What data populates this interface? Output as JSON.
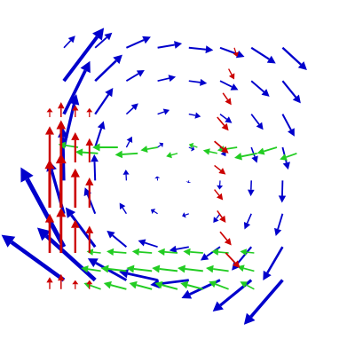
{
  "chart_data": {
    "type": "quiver",
    "xlim": [
      0,
      10
    ],
    "ylim": [
      0,
      10
    ],
    "series": [
      {
        "color": "#0000cc",
        "x": [
          1.0,
          2.1,
          3.2,
          4.3,
          5.4,
          6.5,
          7.6,
          8.7,
          1.0,
          2.1,
          3.2,
          4.3,
          5.4,
          6.5,
          7.6,
          8.7,
          1.0,
          2.1,
          3.2,
          4.3,
          5.4,
          6.5,
          7.6,
          8.7,
          1.0,
          2.1,
          3.2,
          4.3,
          5.4,
          6.5,
          7.6,
          8.7,
          1.0,
          2.1,
          3.2,
          4.3,
          5.4,
          6.5,
          7.6,
          8.7,
          1.0,
          2.1,
          3.2,
          4.3,
          5.4,
          6.5,
          7.6,
          8.7,
          1.0,
          2.1,
          3.2,
          4.3,
          5.4,
          6.5,
          7.6,
          8.7,
          1.0,
          2.1,
          3.2,
          4.3,
          5.4,
          6.5,
          7.6,
          8.7
        ],
        "y": [
          9.3,
          9.3,
          9.3,
          9.3,
          9.3,
          9.3,
          9.3,
          9.3,
          8.2,
          8.2,
          8.2,
          8.2,
          8.2,
          8.2,
          8.2,
          8.2,
          7.1,
          7.1,
          7.1,
          7.1,
          7.1,
          7.1,
          7.1,
          7.1,
          6.0,
          6.0,
          6.0,
          6.0,
          6.0,
          6.0,
          6.0,
          6.0,
          4.9,
          4.9,
          4.9,
          4.9,
          4.9,
          4.9,
          4.9,
          4.9,
          3.8,
          3.8,
          3.8,
          3.8,
          3.8,
          3.8,
          3.8,
          3.8,
          2.7,
          2.7,
          2.7,
          2.7,
          2.7,
          2.7,
          2.7,
          2.7,
          1.6,
          1.6,
          1.6,
          1.6,
          1.6,
          1.6,
          1.6,
          1.6
        ],
        "u": [
          0.4,
          0.6,
          0.86,
          0.86,
          0.86,
          0.86,
          0.86,
          0.86,
          1.41,
          0.96,
          0.64,
          0.64,
          0.64,
          0.64,
          0.64,
          0.64,
          0.92,
          0.63,
          0.42,
          0.42,
          0.42,
          0.42,
          0.42,
          0.42,
          0.44,
          0.3,
          0.2,
          0.2,
          0.2,
          0.2,
          0.2,
          0.2,
          -0.04,
          -0.03,
          -0.02,
          -0.02,
          -0.02,
          -0.02,
          -0.02,
          -0.02,
          -0.53,
          -0.36,
          -0.24,
          -0.24,
          -0.24,
          -0.24,
          -0.24,
          -0.24,
          -1.52,
          -1.04,
          -0.69,
          -0.69,
          -0.69,
          -0.69,
          -0.69,
          -0.69,
          -2.2,
          -2.04,
          -1.36,
          -1.36,
          -1.36,
          -1.36,
          -1.36,
          -1.36
        ],
        "v": [
          0.4,
          0.5,
          0.36,
          0.14,
          -0.08,
          -0.3,
          -0.52,
          -0.74,
          1.76,
          0.87,
          0.36,
          0.14,
          -0.08,
          -0.3,
          -0.52,
          -0.74,
          1.76,
          0.87,
          0.36,
          0.14,
          -0.08,
          -0.3,
          -0.52,
          -0.74,
          1.76,
          0.87,
          0.36,
          0.14,
          -0.08,
          -0.3,
          -0.52,
          -0.74,
          1.76,
          0.87,
          0.36,
          0.14,
          -0.08,
          -0.3,
          -0.52,
          -0.74,
          1.76,
          0.87,
          0.36,
          0.14,
          -0.08,
          -0.3,
          -0.52,
          -0.74,
          2.64,
          1.31,
          0.54,
          0.21,
          -0.12,
          -0.45,
          -0.78,
          -1.11,
          1.5,
          1.74,
          0.72,
          0.28,
          -0.16,
          -0.6,
          -1.04,
          -1.48
        ]
      },
      {
        "color": "#22cc22",
        "x": [
          1.5,
          2.2,
          2.9,
          3.6,
          4.3,
          5.0,
          5.7,
          6.4,
          7.1,
          7.8,
          8.5,
          9.2,
          2.3,
          3.2,
          4.1,
          5.0,
          5.9,
          6.8,
          7.7,
          2.3,
          3.2,
          4.1,
          5.0,
          5.9,
          6.8,
          7.7,
          2.3,
          3.2,
          4.1,
          5.0,
          5.9,
          6.8,
          7.7
        ],
        "y": [
          6.0,
          5.8,
          6.0,
          5.8,
          6.0,
          5.8,
          6.0,
          5.8,
          6.0,
          5.8,
          6.0,
          5.8,
          2.5,
          2.5,
          2.5,
          2.5,
          2.5,
          2.5,
          2.5,
          1.9,
          1.9,
          1.9,
          1.9,
          1.9,
          1.9,
          1.9,
          1.3,
          1.3,
          1.3,
          1.3,
          1.3,
          1.3,
          1.3
        ],
        "u": [
          -0.7,
          -0.8,
          -0.9,
          -0.8,
          -0.6,
          -0.4,
          -0.3,
          -0.5,
          -0.7,
          -0.8,
          -0.7,
          -0.6,
          -0.5,
          -0.7,
          -0.7,
          -0.7,
          -0.7,
          -0.6,
          -0.5,
          -0.7,
          -0.9,
          -0.9,
          -0.9,
          -0.9,
          -0.8,
          -0.6,
          -0.6,
          -0.8,
          -0.8,
          -0.8,
          -0.8,
          -0.7,
          -0.5
        ],
        "v": [
          0.1,
          0.05,
          0,
          -0.05,
          -0.1,
          -0.1,
          0.1,
          0.1,
          -0.1,
          -0.15,
          -0.2,
          -0.2,
          0.05,
          0.05,
          0.05,
          0.05,
          0.05,
          0.05,
          0.05,
          0.1,
          0.1,
          0.1,
          0.1,
          0.1,
          0.1,
          0.15,
          0.2,
          0.2,
          0.2,
          0.2,
          0.2,
          0.25,
          0.25
        ]
      },
      {
        "color": "#cc0000",
        "x": [
          0.5,
          0.5,
          0.5,
          0.5,
          0.5,
          0.9,
          0.9,
          0.9,
          0.9,
          0.9,
          1.4,
          1.4,
          1.4,
          1.4,
          1.4,
          1.9,
          1.9,
          1.9,
          1.9,
          1.9,
          7.0,
          6.8,
          6.6,
          6.4,
          6.3,
          6.3,
          6.3,
          6.4,
          6.5,
          6.7
        ],
        "y": [
          7.0,
          5.5,
          4.0,
          2.5,
          1.3,
          7.0,
          5.5,
          4.0,
          2.5,
          1.3,
          7.0,
          5.5,
          4.0,
          2.5,
          1.3,
          7.0,
          5.5,
          4.0,
          2.5,
          1.3,
          9.3,
          8.6,
          7.8,
          7.0,
          6.2,
          5.4,
          4.6,
          3.9,
          3.2,
          2.5
        ],
        "u": [
          0,
          0,
          0,
          0,
          0,
          0,
          0,
          0,
          0,
          0,
          0,
          0,
          0,
          0,
          0,
          0,
          0,
          0,
          0,
          0,
          0.1,
          0.2,
          0.3,
          0.4,
          0.5,
          0.4,
          0.3,
          0.3,
          0.4,
          0.5
        ],
        "v": [
          0.3,
          1.2,
          1.6,
          1.3,
          0.4,
          0.5,
          1.4,
          1.8,
          1.5,
          0.5,
          0.4,
          1.0,
          1.3,
          1.1,
          0.3,
          0.3,
          0.8,
          1.0,
          0.9,
          0.3,
          -0.3,
          -0.35,
          -0.4,
          -0.45,
          -0.4,
          -0.3,
          -0.35,
          -0.4,
          -0.45,
          -0.5
        ]
      }
    ]
  }
}
